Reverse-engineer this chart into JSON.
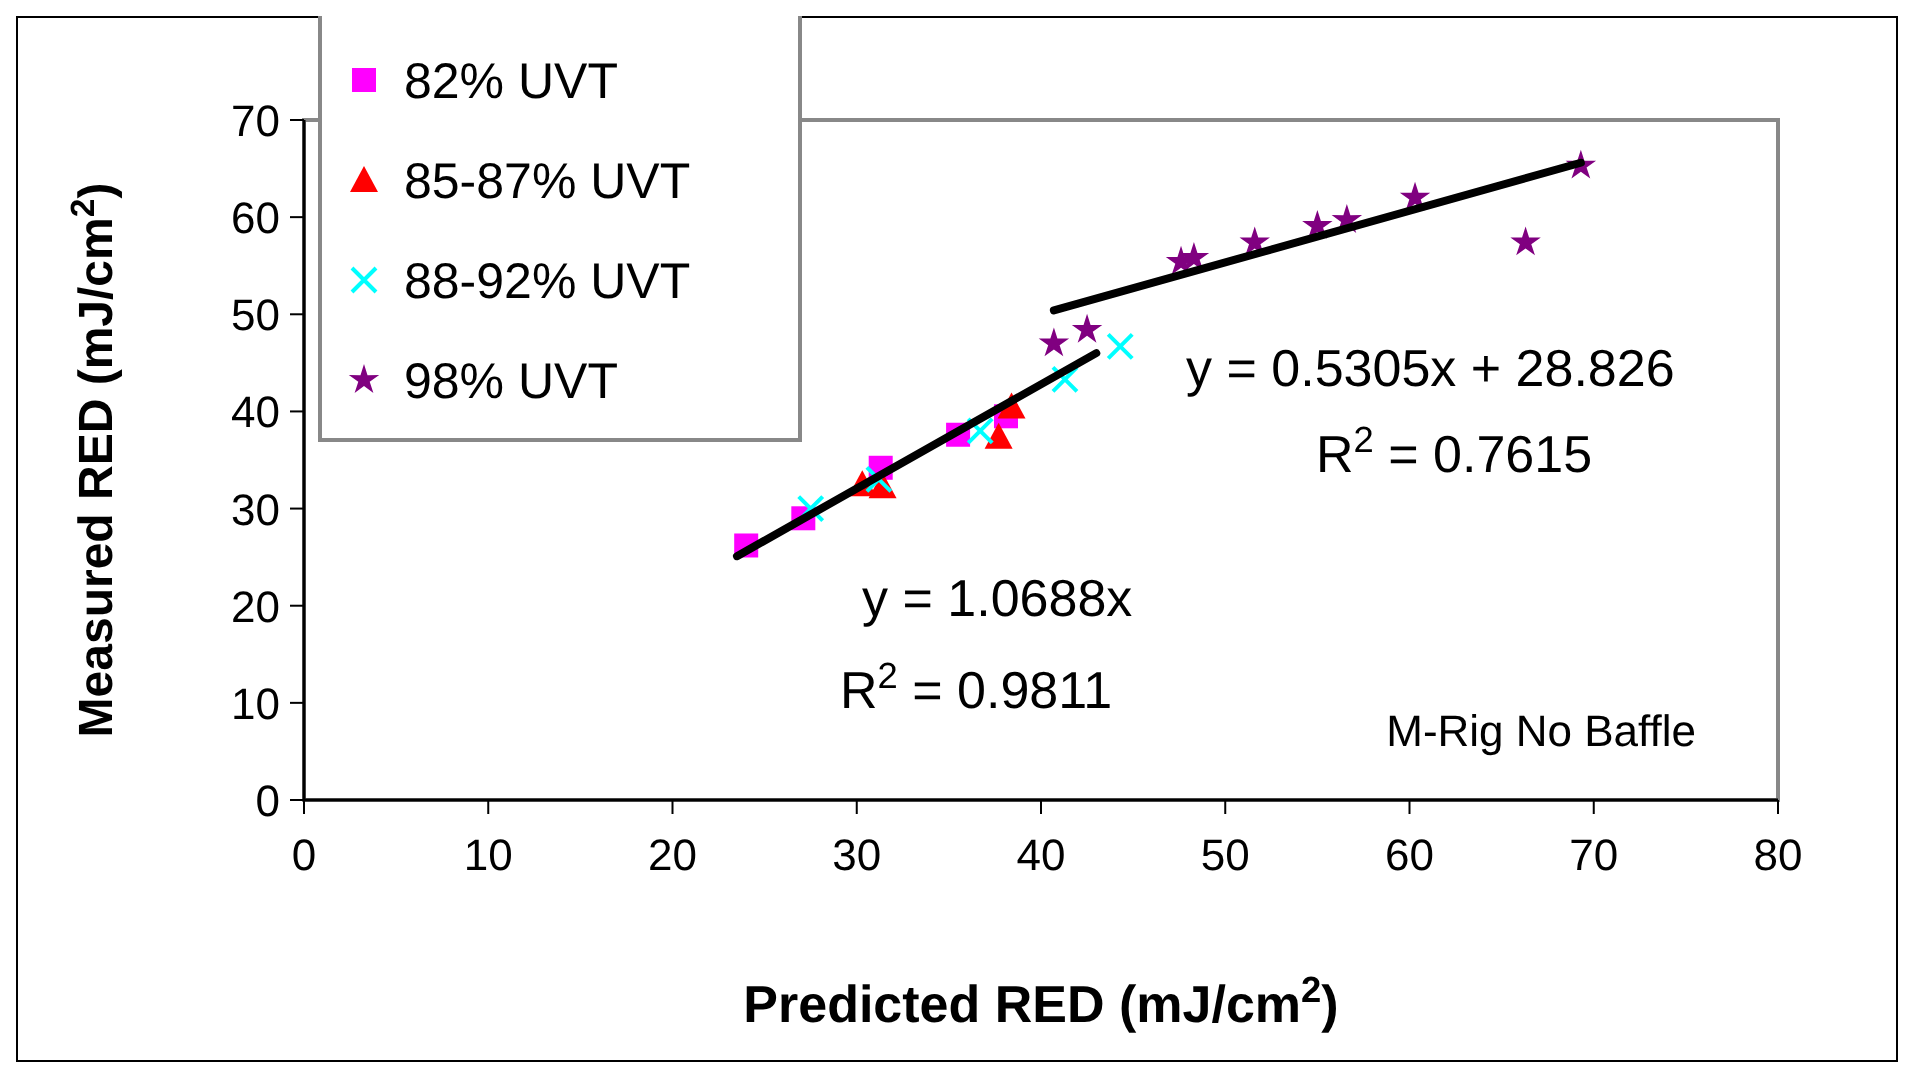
{
  "chart_data": {
    "type": "scatter",
    "xlabel": "Predicted RED (mJ/cm$^{2}$)",
    "ylabel": "Measured RED (mJ/cm$^{2}$)",
    "xlim": [
      0,
      80
    ],
    "xticks": [
      0,
      10,
      20,
      30,
      40,
      50,
      60,
      70,
      80
    ],
    "ylim": [
      0,
      70
    ],
    "yticks": [
      0,
      10,
      20,
      30,
      40,
      50,
      60,
      70
    ],
    "grid": false,
    "legend": "top left",
    "series": [
      {
        "name": "82% UVT",
        "color": "#ff00ff",
        "marker": "square",
        "x": [
          24.0,
          27.1,
          31.3,
          35.5,
          38.1
        ],
        "values": [
          26.2,
          29.0,
          34.2,
          37.6,
          39.5
        ]
      },
      {
        "name": "85-87% UVT",
        "color": "#ff0000",
        "marker": "triangle",
        "x": [
          30.3,
          31.4,
          37.7,
          38.4
        ],
        "values": [
          32.5,
          32.3,
          37.4,
          40.5
        ]
      },
      {
        "name": "88-92% UVT",
        "color": "#00ffff",
        "marker": "cross",
        "x": [
          27.5,
          31.2,
          36.7,
          41.3,
          44.3
        ],
        "values": [
          30.0,
          33.0,
          38.0,
          43.3,
          46.7
        ]
      },
      {
        "name": "98% UVT",
        "color": "#800080",
        "marker": "star",
        "x": [
          40.7,
          42.5,
          47.6,
          48.3,
          51.6,
          55.0,
          56.6,
          60.3,
          66.3,
          69.3
        ],
        "values": [
          47.0,
          48.4,
          55.4,
          55.8,
          57.4,
          59.1,
          59.7,
          62.0,
          57.4,
          65.3
        ]
      },
      {
        "type": "line",
        "color": "#000000",
        "marker": "none",
        "line_style": "solid",
        "x": [
          23.5,
          43.0
        ],
        "values": [
          25.1,
          46.0
        ]
      },
      {
        "type": "line",
        "color": "#000000",
        "marker": "none",
        "line_style": "solid",
        "x": [
          40.7,
          69.3
        ],
        "values": [
          50.4,
          65.6
        ]
      }
    ],
    "annotations": [
      "y = 0.5305x + 28.826",
      "R$^{2}$ = 0.7615",
      "y = 1.0688x",
      "R$^{2}$ = 0.9811",
      "M-Rig No Baffle"
    ]
  }
}
